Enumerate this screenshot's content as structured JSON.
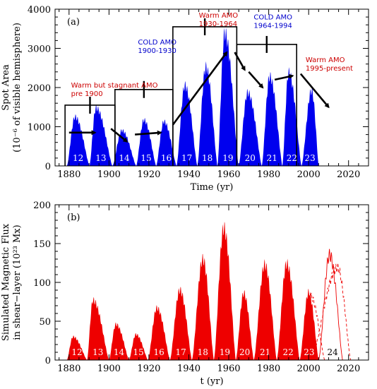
{
  "chart_data": [
    {
      "type": "area",
      "panel_label": "(a)",
      "xlabel": "Time (yr)",
      "ylabel": "Spot Area",
      "ylabel2": "(10⁻⁶ of visible hemisphere)",
      "xlim": [
        1873,
        2030
      ],
      "ylim": [
        0,
        4000
      ],
      "xticks": [
        "1880",
        "1900",
        "1920",
        "1940",
        "1960",
        "1980",
        "2000",
        "2020"
      ],
      "yticks": [
        "0",
        "1000",
        "2000",
        "3000",
        "4000"
      ],
      "fill_color": "#0000ee",
      "cycles": [
        {
          "label": "12",
          "start": 1878.9,
          "peak": 1883.0,
          "end": 1890.2,
          "amp": 1250
        },
        {
          "label": "13",
          "start": 1890.2,
          "peak": 1893.5,
          "end": 1901.7,
          "amp": 1480
        },
        {
          "label": "14",
          "start": 1901.7,
          "peak": 1906.5,
          "end": 1913.6,
          "amp": 900
        },
        {
          "label": "15",
          "start": 1913.6,
          "peak": 1917.5,
          "end": 1923.6,
          "amp": 1170
        },
        {
          "label": "16",
          "start": 1923.6,
          "peak": 1927.5,
          "end": 1933.8,
          "amp": 1130
        },
        {
          "label": "17",
          "start": 1933.8,
          "peak": 1938.0,
          "end": 1944.2,
          "amp": 2050
        },
        {
          "label": "18",
          "start": 1944.2,
          "peak": 1948.5,
          "end": 1954.3,
          "amp": 2520
        },
        {
          "label": "19",
          "start": 1954.3,
          "peak": 1958.0,
          "end": 1964.9,
          "amp": 3380
        },
        {
          "label": "20",
          "start": 1964.9,
          "peak": 1969.5,
          "end": 1976.5,
          "amp": 1870
        },
        {
          "label": "21",
          "start": 1976.5,
          "peak": 1980.5,
          "end": 1986.8,
          "amp": 2280
        },
        {
          "label": "22",
          "start": 1986.8,
          "peak": 1990.0,
          "end": 1996.4,
          "amp": 2380
        },
        {
          "label": "23",
          "start": 1996.4,
          "peak": 2001.5,
          "end": 2005.0,
          "amp": 1920
        }
      ],
      "annotations": [
        {
          "lines": [
            "Warm but stagnant AMO",
            "pre 1900"
          ],
          "color": "#cc0000",
          "x": 1881,
          "y": 2000
        },
        {
          "lines": [
            "COLD AMO",
            "1900-1930"
          ],
          "color": "#0000cc",
          "x": 1914.5,
          "y": 3100
        },
        {
          "lines": [
            "Warm AMO",
            "1930-1964"
          ],
          "color": "#cc0000",
          "x": 1945,
          "y": 3780
        },
        {
          "lines": [
            "COLD AMO",
            "1964-1994"
          ],
          "color": "#0000cc",
          "x": 1972.5,
          "y": 3740
        },
        {
          "lines": [
            "Warm AMO",
            "1995-present"
          ],
          "color": "#cc0000",
          "x": 1998.5,
          "y": 2650
        }
      ],
      "regime_boxes": [
        {
          "x0": 1878,
          "x1": 1903,
          "y": 1550
        },
        {
          "x0": 1903,
          "x1": 1932,
          "y": 1950
        },
        {
          "x0": 1932,
          "x1": 1964,
          "y": 3550
        },
        {
          "x0": 1964,
          "x1": 1994,
          "y": 3100
        }
      ],
      "arrows": [
        {
          "from": [
            1880,
            850
          ],
          "to": [
            1893,
            850
          ]
        },
        {
          "from": [
            1901,
            950
          ],
          "to": [
            1909,
            620
          ]
        },
        {
          "from": [
            1913,
            800
          ],
          "to": [
            1926,
            850
          ]
        },
        {
          "from": [
            1932,
            1050
          ],
          "to": [
            1959,
            2900
          ]
        },
        {
          "from": [
            1963,
            2900
          ],
          "to": [
            1968,
            2450
          ]
        },
        {
          "from": [
            1970,
            2400
          ],
          "to": [
            1977,
            2000
          ]
        },
        {
          "from": [
            1983,
            2200
          ],
          "to": [
            1992,
            2300
          ]
        },
        {
          "from": [
            1996,
            2350
          ],
          "to": [
            2010,
            1500
          ]
        }
      ]
    },
    {
      "type": "area",
      "panel_label": "(b)",
      "xlabel": "t (yr)",
      "ylabel": "Simulated Magnetic Flux",
      "ylabel2": "in shear−layer (10²³ Mx)",
      "xlim": [
        1873,
        2030
      ],
      "ylim": [
        0,
        200
      ],
      "xticks": [
        "1880",
        "1900",
        "1920",
        "1940",
        "1960",
        "1980",
        "2000",
        "2020"
      ],
      "yticks": [
        "0",
        "50",
        "100",
        "150",
        "200"
      ],
      "fill_color": "#ee0000",
      "cycles": [
        {
          "label": "12",
          "start": 1878.9,
          "peak": 1882.0,
          "end": 1889.0,
          "amp": 30
        },
        {
          "label": "13",
          "start": 1889.0,
          "peak": 1892.0,
          "end": 1900.0,
          "amp": 77
        },
        {
          "label": "14",
          "start": 1900.0,
          "peak": 1903.5,
          "end": 1910.0,
          "amp": 46
        },
        {
          "label": "15",
          "start": 1910.0,
          "peak": 1913.5,
          "end": 1919.5,
          "amp": 33
        },
        {
          "label": "16",
          "start": 1919.5,
          "peak": 1924.0,
          "end": 1930.5,
          "amp": 67
        },
        {
          "label": "17",
          "start": 1930.5,
          "peak": 1935.5,
          "end": 1941.5,
          "amp": 90
        },
        {
          "label": "18",
          "start": 1941.5,
          "peak": 1947.0,
          "end": 1952.5,
          "amp": 130
        },
        {
          "label": "19",
          "start": 1952.5,
          "peak": 1957.5,
          "end": 1963.5,
          "amp": 170
        },
        {
          "label": "20",
          "start": 1963.5,
          "peak": 1967.5,
          "end": 1972.5,
          "amp": 86
        },
        {
          "label": "21",
          "start": 1972.5,
          "peak": 1978.0,
          "end": 1984.0,
          "amp": 123
        },
        {
          "label": "22",
          "start": 1984.0,
          "peak": 1989.0,
          "end": 1995.5,
          "amp": 124
        },
        {
          "label": "23",
          "start": 1995.5,
          "peak": 2000.0,
          "end": 2005.0,
          "amp": 87
        }
      ],
      "forecast": [
        {
          "style": "solid",
          "start": 2005.0,
          "peak": 2010.5,
          "end": 2017.0,
          "amp": 135
        },
        {
          "style": "dashed",
          "start": 2001.0,
          "peak": 2014.5,
          "end": 2021.0,
          "amp": 118
        },
        {
          "style": "dashed",
          "start": 1997.0,
          "peak": 2001.0,
          "end": 2008.0,
          "amp": 82
        }
      ],
      "forecast_label": {
        "label": "24",
        "x": 2012
      }
    }
  ]
}
